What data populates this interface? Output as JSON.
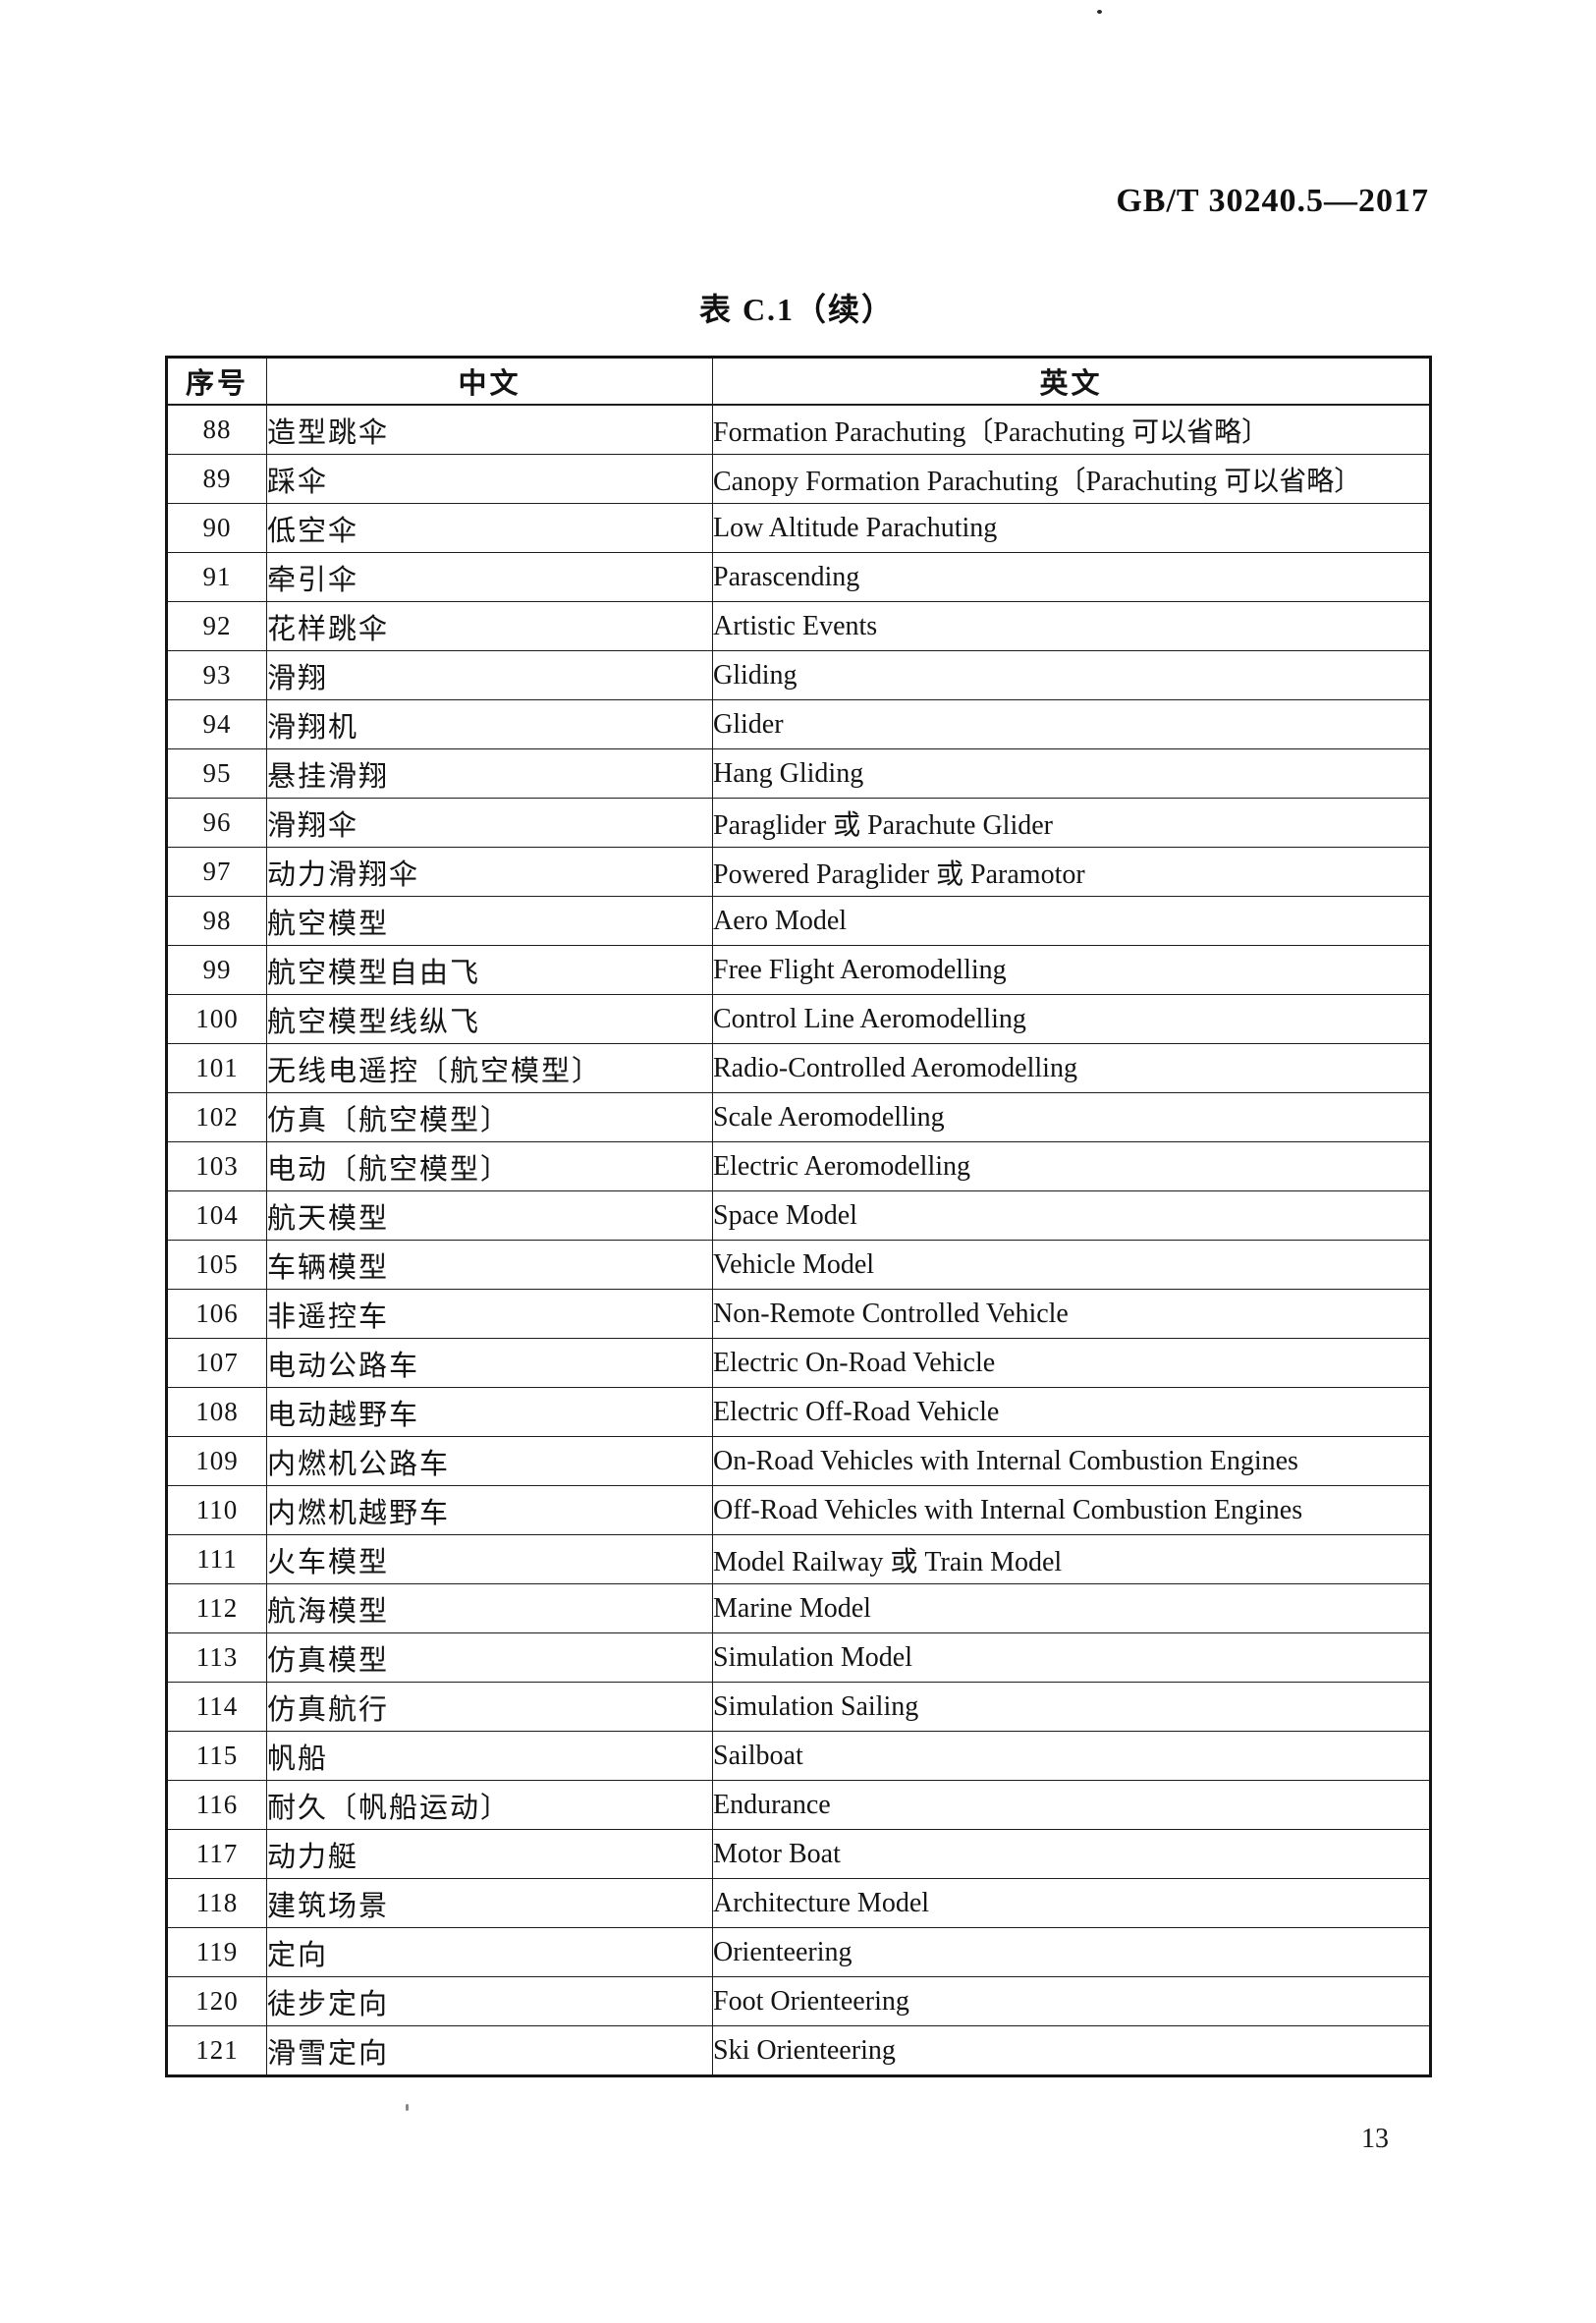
{
  "page": {
    "standard_code": "GB/T 30240.5—2017",
    "table_title": "表 C.1（续）",
    "page_number": "13"
  },
  "table": {
    "columns": [
      "序号",
      "中文",
      "英文"
    ],
    "rows": [
      {
        "no": "88",
        "zh": "造型跳伞",
        "en": "Formation Parachuting〔Parachuting 可以省略〕"
      },
      {
        "no": "89",
        "zh": "踩伞",
        "en": "Canopy Formation Parachuting〔Parachuting 可以省略〕"
      },
      {
        "no": "90",
        "zh": "低空伞",
        "en": "Low Altitude Parachuting"
      },
      {
        "no": "91",
        "zh": "牵引伞",
        "en": "Parascending"
      },
      {
        "no": "92",
        "zh": "花样跳伞",
        "en": "Artistic Events"
      },
      {
        "no": "93",
        "zh": "滑翔",
        "en": "Gliding"
      },
      {
        "no": "94",
        "zh": "滑翔机",
        "en": "Glider"
      },
      {
        "no": "95",
        "zh": "悬挂滑翔",
        "en": "Hang Gliding"
      },
      {
        "no": "96",
        "zh": "滑翔伞",
        "en": "Paraglider 或 Parachute Glider"
      },
      {
        "no": "97",
        "zh": "动力滑翔伞",
        "en": "Powered Paraglider 或 Paramotor"
      },
      {
        "no": "98",
        "zh": "航空模型",
        "en": "Aero Model"
      },
      {
        "no": "99",
        "zh": "航空模型自由飞",
        "en": "Free Flight Aeromodelling"
      },
      {
        "no": "100",
        "zh": "航空模型线纵飞",
        "en": "Control Line Aeromodelling"
      },
      {
        "no": "101",
        "zh": "无线电遥控〔航空模型〕",
        "en": "Radio-Controlled Aeromodelling"
      },
      {
        "no": "102",
        "zh": "仿真〔航空模型〕",
        "en": "Scale Aeromodelling"
      },
      {
        "no": "103",
        "zh": "电动〔航空模型〕",
        "en": "Electric Aeromodelling"
      },
      {
        "no": "104",
        "zh": "航天模型",
        "en": "Space Model"
      },
      {
        "no": "105",
        "zh": "车辆模型",
        "en": "Vehicle Model"
      },
      {
        "no": "106",
        "zh": "非遥控车",
        "en": "Non-Remote Controlled Vehicle"
      },
      {
        "no": "107",
        "zh": "电动公路车",
        "en": "Electric On-Road Vehicle"
      },
      {
        "no": "108",
        "zh": "电动越野车",
        "en": "Electric Off-Road Vehicle"
      },
      {
        "no": "109",
        "zh": "内燃机公路车",
        "en": "On-Road Vehicles with Internal Combustion Engines"
      },
      {
        "no": "110",
        "zh": "内燃机越野车",
        "en": "Off-Road Vehicles with Internal Combustion Engines"
      },
      {
        "no": "111",
        "zh": "火车模型",
        "en": "Model Railway 或 Train Model"
      },
      {
        "no": "112",
        "zh": "航海模型",
        "en": "Marine Model"
      },
      {
        "no": "113",
        "zh": "仿真模型",
        "en": "Simulation Model"
      },
      {
        "no": "114",
        "zh": "仿真航行",
        "en": "Simulation Sailing"
      },
      {
        "no": "115",
        "zh": "帆船",
        "en": "Sailboat"
      },
      {
        "no": "116",
        "zh": "耐久〔帆船运动〕",
        "en": "Endurance"
      },
      {
        "no": "117",
        "zh": "动力艇",
        "en": "Motor Boat"
      },
      {
        "no": "118",
        "zh": "建筑场景",
        "en": "Architecture Model"
      },
      {
        "no": "119",
        "zh": "定向",
        "en": "Orienteering"
      },
      {
        "no": "120",
        "zh": "徒步定向",
        "en": "Foot Orienteering"
      },
      {
        "no": "121",
        "zh": "滑雪定向",
        "en": "Ski Orienteering"
      }
    ]
  }
}
